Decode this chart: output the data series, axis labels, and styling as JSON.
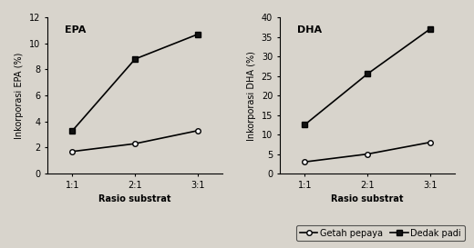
{
  "x_labels": [
    "1:1",
    "2:1",
    "3:1"
  ],
  "x_values": [
    1,
    2,
    3
  ],
  "epa_getah_pepaya": [
    1.7,
    2.3,
    3.3
  ],
  "epa_dedak_padi": [
    3.3,
    8.8,
    10.7
  ],
  "epa_ylabel": "Inkorporasi EPA (%)",
  "epa_title": "EPA",
  "epa_ylim": [
    0,
    12
  ],
  "epa_yticks": [
    0,
    2,
    4,
    6,
    8,
    10,
    12
  ],
  "dha_getah_pepaya": [
    3.0,
    5.0,
    8.0
  ],
  "dha_dedak_padi": [
    12.5,
    25.5,
    37.0
  ],
  "dha_ylabel": "Inkorporasi DHA (%)",
  "dha_title": "DHA",
  "dha_ylim": [
    0,
    40
  ],
  "dha_yticks": [
    0,
    5,
    10,
    15,
    20,
    25,
    30,
    35,
    40
  ],
  "xlabel": "Rasio substrat",
  "line_color": "#000000",
  "getah_marker": "o",
  "dedak_marker": "s",
  "getah_markerfacecolor": "#ffffff",
  "dedak_markerfacecolor": "#111111",
  "marker_size": 4,
  "line_width": 1.2,
  "legend_getah": "Getah pepaya",
  "legend_dedak": "Dedak padi",
  "bg_color": "#d8d4cc",
  "plot_bg_color": "#d8d4cc",
  "font_size_label": 7,
  "font_size_title": 8,
  "font_size_tick": 7,
  "font_size_legend": 7
}
